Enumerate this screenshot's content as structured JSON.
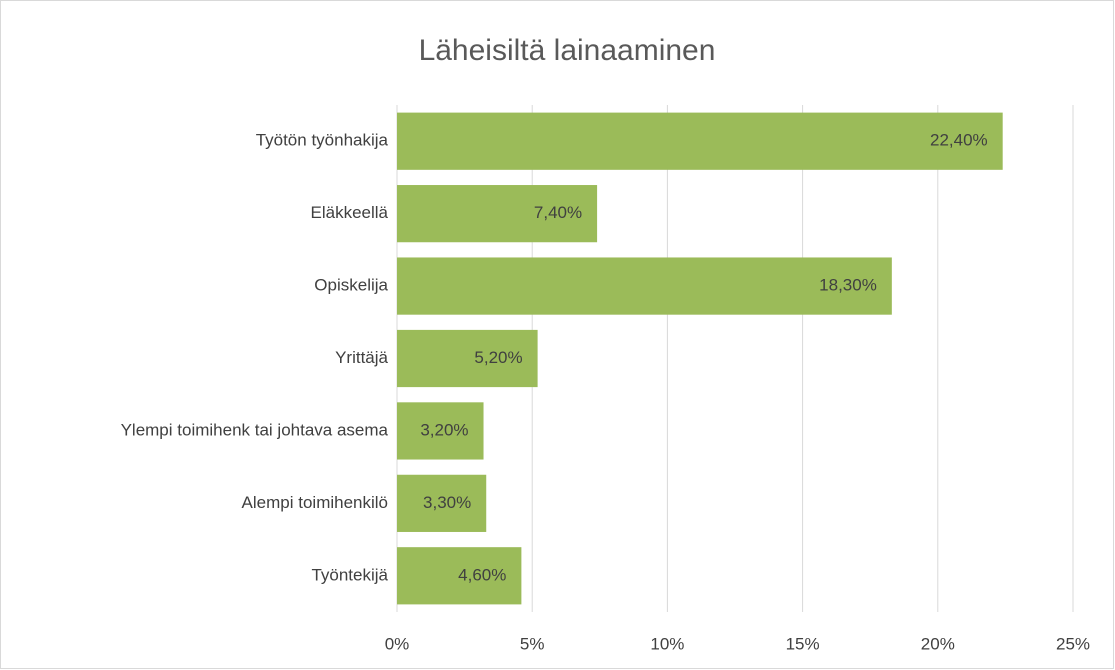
{
  "chart_data": {
    "type": "hbar",
    "title": "Läheisiltä lainaaminen",
    "categories": [
      "Työtön työnhakija",
      "Eläkkeellä",
      "Opiskelija",
      "Yrittäjä",
      "Ylempi toimihenk tai johtava asema",
      "Alempi toimihenkilö",
      "Työntekijä"
    ],
    "values": [
      22.4,
      7.4,
      18.3,
      5.2,
      3.2,
      3.3,
      4.6
    ],
    "value_labels": [
      "22,40%",
      "7,40%",
      "18,30%",
      "5,20%",
      "3,20%",
      "3,30%",
      "4,60%"
    ],
    "color": "#9bbb59",
    "xlim": [
      0,
      25
    ],
    "xticks": [
      {
        "value": 0,
        "label": "0%"
      },
      {
        "value": 5,
        "label": "5%"
      },
      {
        "value": 10,
        "label": "10%"
      },
      {
        "value": 15,
        "label": "15%"
      },
      {
        "value": 20,
        "label": "20%"
      },
      {
        "value": 25,
        "label": "25%"
      }
    ],
    "grid": true
  }
}
